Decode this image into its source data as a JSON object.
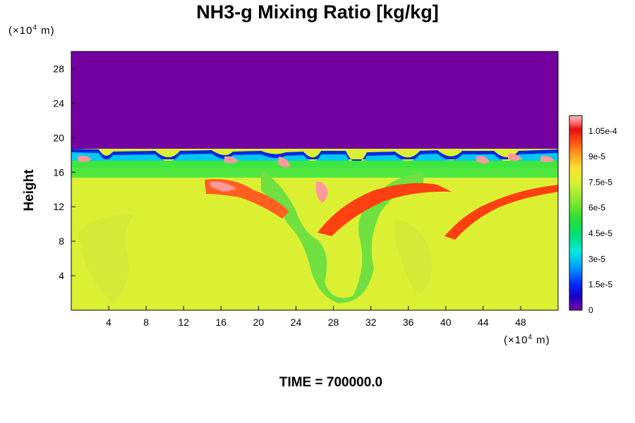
{
  "chart_data": {
    "type": "heatmap",
    "title": "NH3-g Mixing Ratio [kg/kg]",
    "ylabel": "Height",
    "x_unit": {
      "prefix": "(×10",
      "exp": "4",
      "suffix": " m)"
    },
    "y_unit": {
      "prefix": "(×10",
      "exp": "4",
      "suffix": " m)"
    },
    "xlim": [
      0,
      52
    ],
    "ylim": [
      0,
      30
    ],
    "x_ticks": [
      4,
      8,
      12,
      16,
      20,
      24,
      28,
      32,
      36,
      40,
      44,
      48
    ],
    "y_ticks": [
      4,
      8,
      12,
      16,
      20,
      24,
      28
    ],
    "colorbar": {
      "range": [
        0,
        0.000114
      ],
      "tick_labels": [
        "0",
        "1.5e-5",
        "3e-5",
        "4.5e-5",
        "6e-5",
        "7.5e-5",
        "9e-5",
        "1.05e-4"
      ],
      "tick_values": [
        0,
        1.5e-05,
        3e-05,
        4.5e-05,
        6e-05,
        7.5e-05,
        9e-05,
        0.000105
      ]
    },
    "annotation": "TIME = 700000.0"
  },
  "colors": {
    "upper_region": "#7400a0",
    "lower_region": "#dcf033",
    "mid_band": "#3fe63f"
  }
}
